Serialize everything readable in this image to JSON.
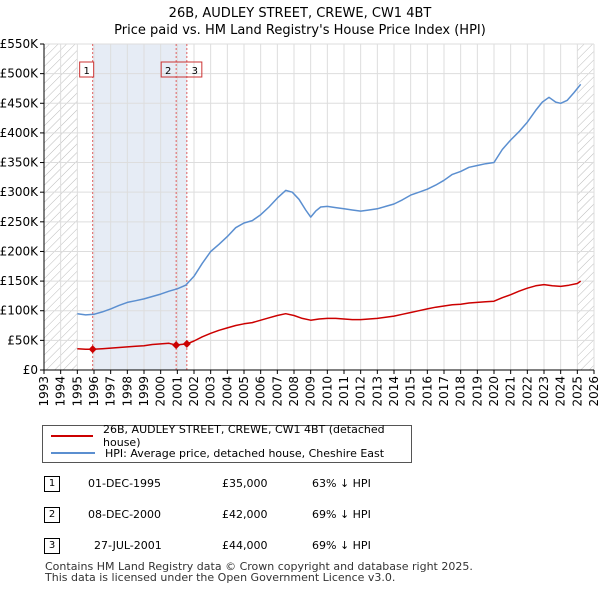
{
  "title": {
    "line1": "26B, AUDLEY STREET, CREWE, CW1 4BT",
    "line2": "Price paid vs. HM Land Registry's House Price Index (HPI)"
  },
  "colors": {
    "price_paid": "#cc0000",
    "hpi": "#5b8fd0",
    "shade": "#e6ecf5",
    "hatch": "#bbbbbb"
  },
  "legend": {
    "price_paid_label": "26B, AUDLEY STREET, CREWE, CW1 4BT (detached house)",
    "hpi_label": "HPI: Average price, detached house, Cheshire East"
  },
  "transactions": [
    {
      "num": "1",
      "date": "01-DEC-1995",
      "price": "£35,000",
      "delta": "63% ↓ HPI"
    },
    {
      "num": "2",
      "date": "08-DEC-2000",
      "price": "£42,000",
      "delta": "69% ↓ HPI"
    },
    {
      "num": "3",
      "date": "27-JUL-2001",
      "price": "£44,000",
      "delta": "69% ↓ HPI"
    }
  ],
  "footer": {
    "line1": "Contains HM Land Registry data © Crown copyright and database right 2025.",
    "line2": "This data is licensed under the Open Government Licence v3.0."
  },
  "chart_data": {
    "type": "line",
    "xlim": [
      1993,
      2026
    ],
    "ylim": [
      0,
      550000
    ],
    "x_ticks": [
      1993,
      1994,
      1995,
      1996,
      1997,
      1998,
      1999,
      2000,
      2001,
      2002,
      2003,
      2004,
      2005,
      2006,
      2007,
      2008,
      2009,
      2010,
      2011,
      2012,
      2013,
      2014,
      2015,
      2016,
      2017,
      2018,
      2019,
      2020,
      2021,
      2022,
      2023,
      2024,
      2025,
      2026
    ],
    "y_ticks": [
      {
        "value": 0,
        "label": "£0"
      },
      {
        "value": 50000,
        "label": "£50K"
      },
      {
        "value": 100000,
        "label": "£100K"
      },
      {
        "value": 150000,
        "label": "£150K"
      },
      {
        "value": 200000,
        "label": "£200K"
      },
      {
        "value": 250000,
        "label": "£250K"
      },
      {
        "value": 300000,
        "label": "£300K"
      },
      {
        "value": 350000,
        "label": "£350K"
      },
      {
        "value": 400000,
        "label": "£400K"
      },
      {
        "value": 450000,
        "label": "£450K"
      },
      {
        "value": 500000,
        "label": "£500K"
      },
      {
        "value": 550000,
        "label": "£550K"
      }
    ],
    "hatched_ranges": [
      [
        1993,
        1995
      ],
      [
        2025,
        2026
      ]
    ],
    "series": [
      {
        "name": "HPI: Average price, detached house, Cheshire East",
        "x": [
          1995.0,
          1995.5,
          1996.0,
          1996.5,
          1997.0,
          1997.5,
          1998.0,
          1998.5,
          1999.0,
          1999.5,
          2000.0,
          2000.5,
          2001.0,
          2001.5,
          2002.0,
          2002.5,
          2003.0,
          2003.5,
          2004.0,
          2004.5,
          2005.0,
          2005.5,
          2006.0,
          2006.5,
          2007.0,
          2007.5,
          2007.9,
          2008.3,
          2008.7,
          2009.0,
          2009.3,
          2009.6,
          2010.0,
          2010.5,
          2011.0,
          2011.5,
          2012.0,
          2012.5,
          2013.0,
          2013.5,
          2014.0,
          2014.5,
          2015.0,
          2015.5,
          2016.0,
          2016.5,
          2017.0,
          2017.5,
          2018.0,
          2018.5,
          2019.0,
          2019.5,
          2020.0,
          2020.5,
          2021.0,
          2021.5,
          2022.0,
          2022.5,
          2022.9,
          2023.3,
          2023.7,
          2024.0,
          2024.4,
          2024.8,
          2025.2
        ],
        "values": [
          95000,
          93000,
          94000,
          98000,
          103000,
          109000,
          114000,
          117000,
          120000,
          124000,
          128000,
          133000,
          137000,
          143000,
          158000,
          180000,
          200000,
          212000,
          225000,
          240000,
          248000,
          252000,
          262000,
          275000,
          290000,
          303000,
          300000,
          288000,
          270000,
          258000,
          268000,
          275000,
          276000,
          274000,
          272000,
          270000,
          268000,
          270000,
          272000,
          276000,
          280000,
          287000,
          295000,
          300000,
          305000,
          312000,
          320000,
          330000,
          335000,
          342000,
          345000,
          348000,
          350000,
          372000,
          388000,
          402000,
          418000,
          438000,
          452000,
          460000,
          452000,
          450000,
          455000,
          468000,
          482000
        ]
      },
      {
        "name": "26B, AUDLEY STREET, CREWE, CW1 4BT (detached house)",
        "x": [
          1995.0,
          1995.5,
          1995.92,
          1996.5,
          1997.0,
          1997.5,
          1998.0,
          1998.5,
          1999.0,
          1999.5,
          2000.0,
          2000.5,
          2000.93,
          2001.2,
          2001.57,
          2002.0,
          2002.5,
          2003.0,
          2003.5,
          2004.0,
          2004.5,
          2005.0,
          2005.5,
          2006.0,
          2006.5,
          2007.0,
          2007.5,
          2008.0,
          2008.5,
          2009.0,
          2009.5,
          2010.0,
          2010.5,
          2011.0,
          2011.5,
          2012.0,
          2012.5,
          2013.0,
          2013.5,
          2014.0,
          2014.5,
          2015.0,
          2015.5,
          2016.0,
          2016.5,
          2017.0,
          2017.5,
          2018.0,
          2018.5,
          2019.0,
          2019.5,
          2020.0,
          2020.5,
          2021.0,
          2021.5,
          2022.0,
          2022.5,
          2023.0,
          2023.5,
          2024.0,
          2024.5,
          2025.0,
          2025.2
        ],
        "values": [
          36000,
          35000,
          35000,
          36000,
          37000,
          38000,
          39000,
          40000,
          41000,
          43000,
          44000,
          45000,
          42000,
          43000,
          44000,
          49000,
          56000,
          62000,
          67000,
          71000,
          75000,
          78000,
          80000,
          84000,
          88000,
          92000,
          95000,
          92000,
          87000,
          84000,
          86000,
          87000,
          87000,
          86000,
          85000,
          85000,
          86000,
          87000,
          89000,
          91000,
          94000,
          97000,
          100000,
          103000,
          106000,
          108000,
          110000,
          111000,
          113000,
          114000,
          115000,
          116000,
          122000,
          127000,
          133000,
          138000,
          142000,
          144000,
          142000,
          141000,
          143000,
          146000,
          150000
        ]
      }
    ],
    "sale_points": [
      {
        "num": "1",
        "x": 1995.92,
        "value": 35000
      },
      {
        "num": "2",
        "x": 2000.93,
        "value": 42000
      },
      {
        "num": "3",
        "x": 2001.57,
        "value": 44000
      }
    ]
  }
}
